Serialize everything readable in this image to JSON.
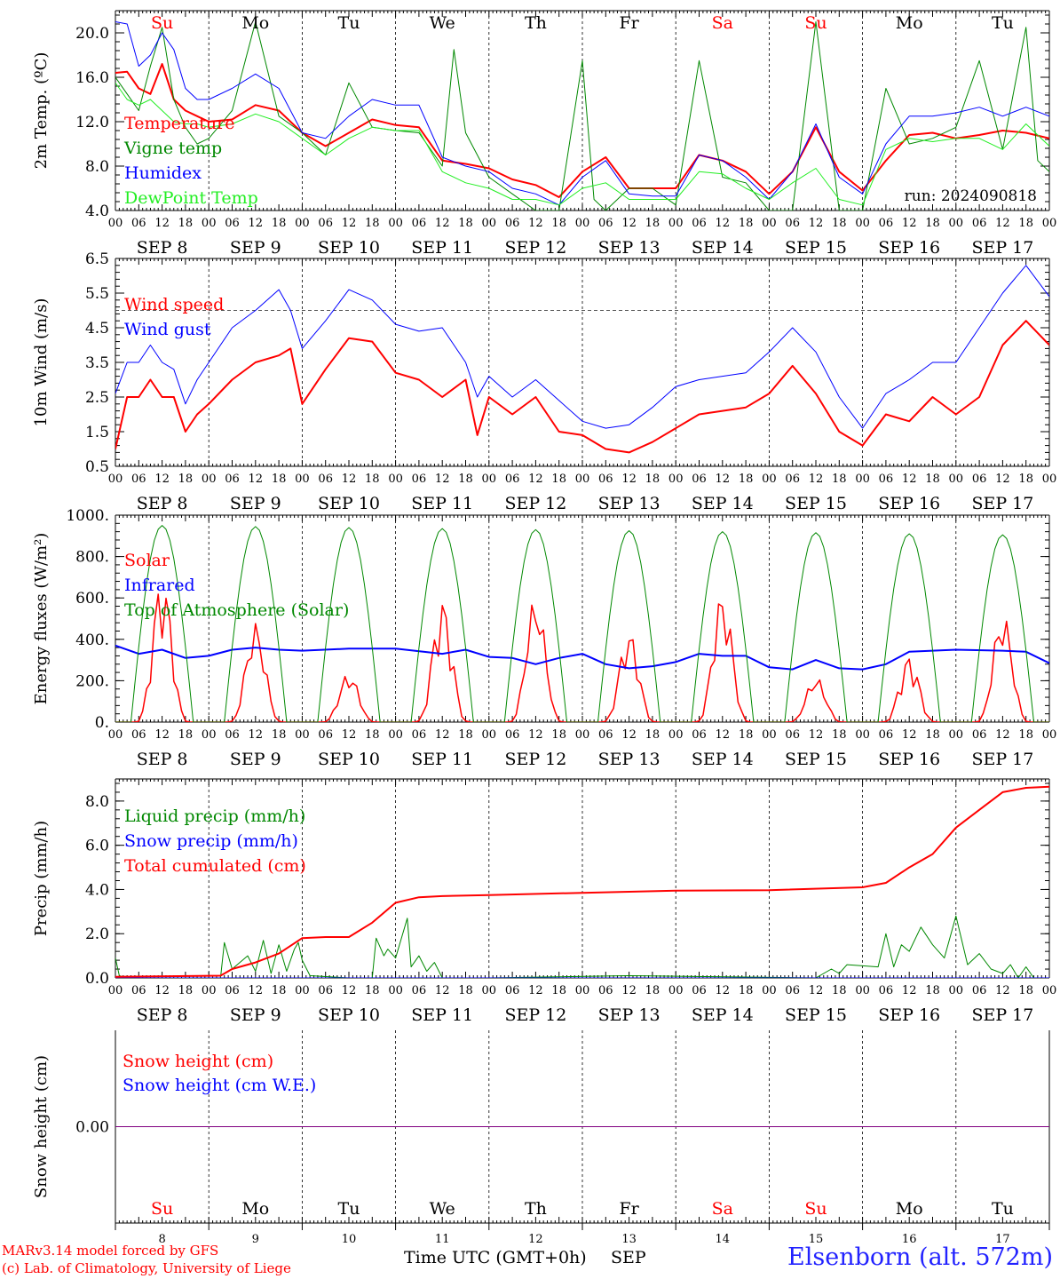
{
  "run_label": "run: 2024090818",
  "days": {
    "weekday": [
      "Su",
      "Mo",
      "Tu",
      "We",
      "Th",
      "Fr",
      "Sa",
      "Su",
      "Mo",
      "Tu"
    ],
    "weekend": [
      true,
      false,
      false,
      false,
      false,
      false,
      true,
      true,
      false,
      false
    ],
    "date_labels": [
      "SEP  8",
      "SEP  9",
      "SEP 10",
      "SEP 11",
      "SEP 12",
      "SEP 13",
      "SEP 14",
      "SEP 15",
      "SEP 16",
      "SEP 17"
    ],
    "hour_ticks": [
      "00",
      "06",
      "12",
      "18"
    ],
    "last_hour": "00",
    "day_numbers": [
      "8",
      "9",
      "10",
      "11",
      "12",
      "13",
      "14",
      "15",
      "16",
      "17"
    ]
  },
  "colors": {
    "red": "#ff0000",
    "green": "#008800",
    "blue": "#0000ff",
    "lightgreen": "#22ee22",
    "purple": "#800080",
    "ref_line": "#555555"
  },
  "footer": {
    "model_line": "MARv3.14 model forced by GFS",
    "credit_line": "(c) Lab. of Climatology, University of Liege",
    "x_axis_label": "Time UTC (GMT+0h)",
    "month_label": "SEP",
    "site": "Elsenborn (alt. 572m)"
  },
  "chart_data": [
    {
      "type": "line",
      "id": "temperature",
      "ylabel": "2m Temp. (ºC)",
      "ylim": [
        4.0,
        22.0
      ],
      "y_ticks": [
        4.0,
        8.0,
        12.0,
        16.0,
        20.0
      ],
      "y_tick_labels": [
        "4.0",
        "8.0",
        "12.0",
        "16.0",
        "20.0"
      ],
      "x_unit": "hours since Sep 8 00 UTC",
      "x_range": [
        0,
        240
      ],
      "grid": "vertical dashed at midnight",
      "legend_placement": "top-left",
      "series": [
        {
          "name": "Temperature",
          "color": "#ff0000",
          "width": 2,
          "x": [
            0,
            3,
            6,
            9,
            12,
            15,
            18,
            21,
            24,
            30,
            36,
            42,
            48,
            54,
            60,
            66,
            72,
            78,
            84,
            90,
            96,
            102,
            108,
            114,
            120,
            126,
            132,
            138,
            144,
            150,
            156,
            162,
            168,
            174,
            180,
            186,
            192,
            198,
            204,
            210,
            216,
            222,
            228,
            234,
            240
          ],
          "values": [
            16.4,
            16.5,
            15.0,
            14.5,
            17.2,
            14.0,
            13.0,
            12.5,
            12.0,
            12.2,
            13.5,
            13.0,
            11.0,
            9.8,
            11.0,
            12.2,
            11.7,
            11.5,
            8.5,
            8.2,
            7.8,
            6.8,
            6.3,
            5.2,
            7.5,
            8.8,
            6.0,
            6.0,
            6.0,
            9.0,
            8.5,
            7.5,
            5.5,
            7.5,
            11.5,
            7.5,
            5.8,
            8.5,
            10.8,
            11.0,
            10.5,
            10.8,
            11.2,
            11.0,
            10.5
          ]
        },
        {
          "name": "Vigne temp",
          "color": "#008800",
          "width": 1,
          "x": [
            0,
            3,
            6,
            9,
            12,
            15,
            18,
            21,
            24,
            30,
            36,
            42,
            48,
            54,
            60,
            66,
            72,
            78,
            84,
            87,
            90,
            96,
            102,
            108,
            114,
            120,
            123,
            126,
            132,
            138,
            144,
            150,
            156,
            162,
            168,
            174,
            180,
            186,
            192,
            198,
            204,
            210,
            216,
            222,
            228,
            234,
            237,
            240
          ],
          "values": [
            16.0,
            14.5,
            13.0,
            17.0,
            20.5,
            14.0,
            11.5,
            10.0,
            10.5,
            13.0,
            21.0,
            12.5,
            11.0,
            9.0,
            15.5,
            11.5,
            11.2,
            11.0,
            8.0,
            18.5,
            11.0,
            7.0,
            5.5,
            4.0,
            4.0,
            17.5,
            5.0,
            4.0,
            6.0,
            6.0,
            4.5,
            17.5,
            7.0,
            6.5,
            4.0,
            4.0,
            21.0,
            4.0,
            4.0,
            15.0,
            10.0,
            10.5,
            11.5,
            17.5,
            9.5,
            20.5,
            8.5,
            7.5
          ]
        },
        {
          "name": "Humidex",
          "color": "#0000ff",
          "width": 1,
          "x": [
            0,
            3,
            6,
            9,
            12,
            15,
            18,
            21,
            24,
            30,
            36,
            42,
            48,
            54,
            60,
            66,
            72,
            78,
            84,
            90,
            96,
            102,
            108,
            114,
            120,
            126,
            132,
            138,
            144,
            150,
            156,
            162,
            168,
            174,
            180,
            186,
            192,
            198,
            204,
            210,
            216,
            222,
            228,
            234,
            240
          ],
          "values": [
            21.0,
            20.8,
            17.0,
            18.0,
            20.0,
            18.5,
            15.0,
            14.0,
            14.0,
            15.0,
            16.3,
            15.0,
            11.0,
            10.5,
            12.5,
            14.0,
            13.5,
            13.5,
            8.8,
            8.0,
            7.5,
            6.0,
            5.5,
            4.5,
            7.0,
            8.5,
            5.5,
            5.3,
            5.3,
            9.0,
            8.5,
            7.0,
            5.0,
            7.5,
            11.8,
            7.0,
            5.5,
            10.0,
            12.5,
            12.5,
            12.8,
            13.3,
            12.5,
            13.3,
            12.5
          ]
        },
        {
          "name": "DewPoint Temp",
          "color": "#22ee22",
          "width": 1,
          "x": [
            0,
            3,
            6,
            9,
            12,
            15,
            18,
            21,
            24,
            30,
            36,
            42,
            48,
            54,
            60,
            66,
            72,
            78,
            84,
            90,
            96,
            102,
            108,
            114,
            120,
            126,
            132,
            138,
            144,
            150,
            156,
            162,
            168,
            174,
            180,
            186,
            192,
            198,
            204,
            210,
            216,
            222,
            228,
            234,
            240
          ],
          "values": [
            15.5,
            14.0,
            13.5,
            14.0,
            13.0,
            12.0,
            11.8,
            11.8,
            11.5,
            11.8,
            12.7,
            12.0,
            10.5,
            9.0,
            10.5,
            11.5,
            11.2,
            11.2,
            7.5,
            6.5,
            6.0,
            5.0,
            5.0,
            4.5,
            6.0,
            6.5,
            5.0,
            5.0,
            5.0,
            7.5,
            7.3,
            6.0,
            5.0,
            6.5,
            7.8,
            5.0,
            4.5,
            9.5,
            10.5,
            10.2,
            10.5,
            10.5,
            9.5,
            11.8,
            9.8
          ]
        }
      ]
    },
    {
      "type": "line",
      "id": "wind",
      "ylabel": "10m Wind (m/s)",
      "ylim": [
        0.5,
        6.5
      ],
      "y_ticks": [
        0.5,
        1.5,
        2.5,
        3.5,
        4.5,
        5.5,
        6.5
      ],
      "y_tick_labels": [
        "0.5",
        "1.5",
        "2.5",
        "3.5",
        "4.5",
        "5.5",
        "6.5"
      ],
      "ref_line_y": 5.0,
      "x_unit": "hours since Sep 8 00 UTC",
      "x_range": [
        0,
        240
      ],
      "legend_placement": "top-left",
      "series": [
        {
          "name": "Wind speed",
          "color": "#ff0000",
          "width": 2,
          "x": [
            0,
            3,
            6,
            9,
            12,
            15,
            18,
            21,
            24,
            30,
            36,
            42,
            45,
            48,
            54,
            60,
            66,
            72,
            78,
            84,
            90,
            93,
            96,
            102,
            108,
            114,
            120,
            126,
            132,
            138,
            144,
            150,
            156,
            162,
            168,
            174,
            180,
            186,
            192,
            198,
            204,
            210,
            216,
            222,
            228,
            234,
            240
          ],
          "values": [
            1.0,
            2.5,
            2.5,
            3.0,
            2.5,
            2.5,
            1.5,
            2.0,
            2.3,
            3.0,
            3.5,
            3.7,
            3.9,
            2.3,
            3.3,
            4.2,
            4.1,
            3.2,
            3.0,
            2.5,
            3.0,
            1.4,
            2.5,
            2.0,
            2.5,
            1.5,
            1.4,
            1.0,
            0.9,
            1.2,
            1.6,
            2.0,
            2.1,
            2.2,
            2.6,
            3.4,
            2.6,
            1.5,
            1.1,
            2.0,
            1.8,
            2.5,
            2.0,
            2.5,
            4.0,
            4.7,
            4.0
          ]
        },
        {
          "name": "Wind gust",
          "color": "#0000ff",
          "width": 1,
          "x": [
            0,
            3,
            6,
            9,
            12,
            15,
            18,
            21,
            24,
            30,
            36,
            42,
            45,
            48,
            54,
            60,
            66,
            72,
            78,
            84,
            90,
            93,
            96,
            102,
            108,
            114,
            120,
            126,
            132,
            138,
            144,
            150,
            156,
            162,
            168,
            174,
            180,
            186,
            192,
            198,
            204,
            210,
            216,
            222,
            228,
            234,
            240
          ],
          "values": [
            2.6,
            3.5,
            3.5,
            4.0,
            3.5,
            3.3,
            2.3,
            3.0,
            3.5,
            4.5,
            5.0,
            5.6,
            5.0,
            3.9,
            4.7,
            5.6,
            5.3,
            4.6,
            4.4,
            4.5,
            3.5,
            2.5,
            3.1,
            2.5,
            3.0,
            2.4,
            1.8,
            1.6,
            1.7,
            2.2,
            2.8,
            3.0,
            3.1,
            3.2,
            3.8,
            4.5,
            3.8,
            2.5,
            1.6,
            2.6,
            3.0,
            3.5,
            3.5,
            4.5,
            5.5,
            6.3,
            5.4
          ]
        }
      ]
    },
    {
      "type": "line",
      "id": "energy",
      "ylabel": "Energy fluxes (W/m²)",
      "ylim": [
        0,
        1000
      ],
      "y_ticks": [
        0,
        200,
        400,
        600,
        800,
        1000
      ],
      "y_tick_labels": [
        "0.",
        "200.",
        "400.",
        "600.",
        "800.",
        "1000."
      ],
      "x_unit": "hours since Sep 8 00 UTC",
      "x_range": [
        0,
        240
      ],
      "legend_placement": "top-left",
      "series": [
        {
          "name": "Solar",
          "color": "#ff0000",
          "width": 1.5,
          "daily_peaks": [
            700,
            480,
            240,
            590,
            610,
            440,
            630,
            220,
            320,
            530
          ]
        },
        {
          "name": "Infrared",
          "color": "#0000ff",
          "width": 2,
          "x": [
            0,
            6,
            12,
            18,
            24,
            30,
            36,
            42,
            48,
            60,
            72,
            84,
            90,
            96,
            102,
            108,
            114,
            120,
            126,
            132,
            138,
            144,
            150,
            156,
            162,
            168,
            174,
            180,
            186,
            192,
            198,
            204,
            216,
            228,
            234,
            240
          ],
          "values": [
            370,
            330,
            350,
            310,
            320,
            350,
            360,
            350,
            345,
            355,
            355,
            330,
            350,
            315,
            310,
            280,
            310,
            330,
            280,
            260,
            270,
            290,
            330,
            320,
            320,
            265,
            255,
            300,
            260,
            255,
            280,
            340,
            350,
            345,
            340,
            285
          ]
        },
        {
          "name": "Top of Atmosphere (Solar)",
          "color": "#008800",
          "width": 1,
          "daily_peaks": [
            950,
            945,
            940,
            935,
            930,
            925,
            920,
            915,
            910,
            905
          ]
        }
      ]
    },
    {
      "type": "line",
      "id": "precip",
      "ylabel": "Precip (mm/h)",
      "ylim": [
        0,
        9
      ],
      "y_ticks": [
        0,
        2,
        4,
        6,
        8
      ],
      "y_tick_labels": [
        "0.0",
        "2.0",
        "4.0",
        "6.0",
        "8.0"
      ],
      "x_unit": "hours since Sep 8 00 UTC",
      "x_range": [
        0,
        240
      ],
      "legend_placement": "top-left",
      "series": [
        {
          "name": "Liquid precip (mm/h)",
          "color": "#008800",
          "width": 1,
          "x": [
            0,
            1,
            3,
            27,
            28,
            30,
            34,
            36,
            38,
            40,
            42,
            44,
            46,
            47,
            48,
            50,
            60,
            66,
            67,
            69,
            70,
            72,
            75,
            76,
            78,
            80,
            82,
            84,
            96,
            132,
            180,
            184,
            186,
            188,
            196,
            198,
            200,
            202,
            204,
            207,
            210,
            213,
            216,
            219,
            222,
            225,
            228,
            230,
            232,
            234,
            236,
            240
          ],
          "values": [
            0.9,
            0.1,
            0.0,
            0.0,
            1.6,
            0.4,
            1.0,
            0.3,
            1.7,
            0.2,
            1.5,
            0.3,
            1.3,
            1.6,
            0.8,
            0.1,
            0.0,
            0.0,
            1.8,
            1.0,
            1.3,
            0.9,
            2.7,
            0.5,
            1.0,
            0.3,
            0.7,
            0.0,
            0.0,
            0.1,
            0.0,
            0.4,
            0.2,
            0.6,
            0.5,
            2.0,
            0.5,
            1.5,
            1.2,
            2.3,
            1.5,
            0.9,
            2.8,
            0.6,
            1.1,
            0.4,
            0.2,
            0.6,
            0.0,
            0.5,
            0.0,
            0.0
          ]
        },
        {
          "name": "Snow precip (mm/h)",
          "color": "#0000ff",
          "width": 1,
          "x": [
            0,
            240
          ],
          "values": [
            0.0,
            0.0
          ]
        },
        {
          "name": "Total cumulated (cm)",
          "color": "#ff0000",
          "width": 2,
          "x": [
            0,
            27,
            30,
            36,
            42,
            48,
            54,
            60,
            66,
            72,
            78,
            84,
            96,
            120,
            144,
            168,
            192,
            198,
            204,
            210,
            216,
            222,
            228,
            234,
            240
          ],
          "values": [
            0.05,
            0.1,
            0.4,
            0.7,
            1.1,
            1.8,
            1.85,
            1.85,
            2.5,
            3.4,
            3.65,
            3.7,
            3.75,
            3.85,
            3.95,
            3.97,
            4.1,
            4.3,
            5.0,
            5.6,
            6.8,
            7.6,
            8.4,
            8.6,
            8.65
          ]
        }
      ]
    },
    {
      "type": "line",
      "id": "snow",
      "ylabel": "Snow height (cm)",
      "ylim": [
        -1,
        1
      ],
      "y_ticks": [
        0
      ],
      "y_tick_labels": [
        "0.00"
      ],
      "x_unit": "hours since Sep 8 00 UTC",
      "x_range": [
        0,
        240
      ],
      "legend_placement": "top-left",
      "series": [
        {
          "name": "Snow height (cm)",
          "color": "#ff0000",
          "width": 1,
          "x": [
            0,
            240
          ],
          "values": [
            0,
            0
          ]
        },
        {
          "name": "Snow height (cm W.E.)",
          "color": "#0000ff",
          "width": 1,
          "x": [
            0,
            240
          ],
          "values": [
            0,
            0
          ]
        }
      ]
    }
  ]
}
